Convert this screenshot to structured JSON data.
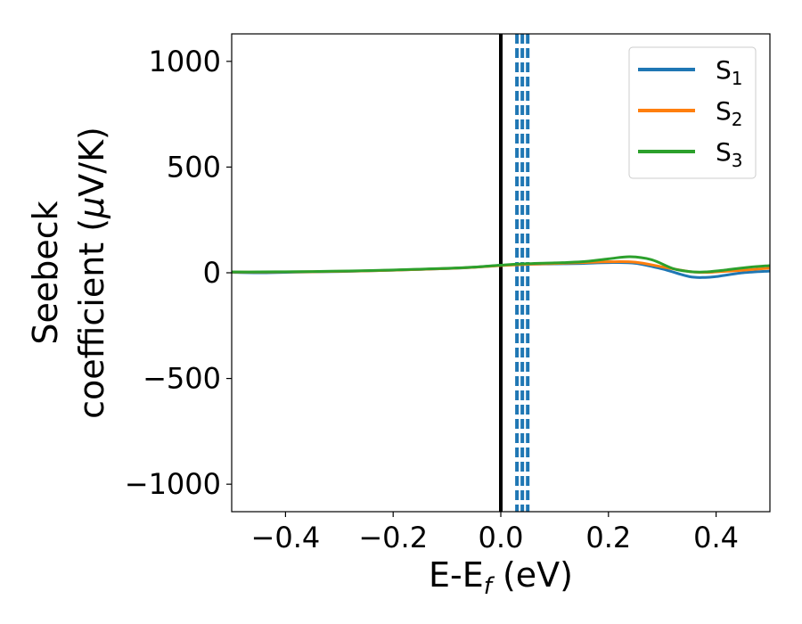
{
  "chart_data": {
    "type": "line",
    "xlabel": "E-E",
    "xlabel_sub": "f",
    "xlabel_unit": " (eV)",
    "ylabel_line1": "Seebeck",
    "ylabel_line2": "coefficient  (",
    "ylabel_mu": "μ",
    "ylabel_unit": "V/K)",
    "xlim": [
      -0.5,
      0.5
    ],
    "ylim": [
      -1130,
      1130
    ],
    "xticks": [
      -0.4,
      -0.2,
      0.0,
      0.2,
      0.4
    ],
    "xtick_labels": [
      "−0.4",
      "−0.2",
      "0.0",
      "0.2",
      "0.4"
    ],
    "yticks": [
      -1000,
      -500,
      0,
      500,
      1000
    ],
    "ytick_labels": [
      "−1000",
      "−500",
      "0",
      "500",
      "1000"
    ],
    "grid": false,
    "legend_position": "top-right",
    "fermi_level_line": {
      "x": 0.0,
      "color": "#000000",
      "style": "solid"
    },
    "dashed_lines": {
      "x": [
        0.03,
        0.04,
        0.05
      ],
      "color": "#1f77b4",
      "style": "dashed"
    },
    "series": [
      {
        "name": "S",
        "name_sub": "1",
        "color": "#1f77b4",
        "x": [
          -0.5,
          -0.45,
          -0.4,
          -0.35,
          -0.3,
          -0.25,
          -0.2,
          -0.15,
          -0.1,
          -0.05,
          0.0,
          0.05,
          0.1,
          0.15,
          0.2,
          0.25,
          0.3,
          0.35,
          0.38,
          0.4,
          0.45,
          0.5
        ],
        "y": [
          2,
          0,
          2,
          4,
          6,
          9,
          12,
          16,
          20,
          26,
          35,
          40,
          42,
          44,
          48,
          45,
          18,
          -18,
          -22,
          -18,
          0,
          8
        ]
      },
      {
        "name": "S",
        "name_sub": "2",
        "color": "#ff7f0e",
        "x": [
          -0.5,
          -0.45,
          -0.4,
          -0.35,
          -0.3,
          -0.25,
          -0.2,
          -0.15,
          -0.1,
          -0.05,
          0.0,
          0.05,
          0.1,
          0.15,
          0.2,
          0.25,
          0.3,
          0.35,
          0.38,
          0.4,
          0.45,
          0.5
        ],
        "y": [
          3,
          3,
          4,
          5,
          7,
          9,
          12,
          16,
          20,
          26,
          34,
          40,
          44,
          48,
          52,
          50,
          28,
          6,
          2,
          4,
          12,
          22
        ]
      },
      {
        "name": "S",
        "name_sub": "3",
        "color": "#2ca02c",
        "x": [
          -0.5,
          -0.45,
          -0.4,
          -0.35,
          -0.3,
          -0.25,
          -0.2,
          -0.15,
          -0.1,
          -0.05,
          0.0,
          0.05,
          0.1,
          0.15,
          0.2,
          0.24,
          0.28,
          0.32,
          0.35,
          0.38,
          0.42,
          0.46,
          0.5
        ],
        "y": [
          4,
          4,
          5,
          6,
          8,
          10,
          13,
          17,
          21,
          27,
          36,
          43,
          47,
          52,
          66,
          76,
          62,
          20,
          6,
          4,
          14,
          26,
          34
        ]
      }
    ]
  }
}
